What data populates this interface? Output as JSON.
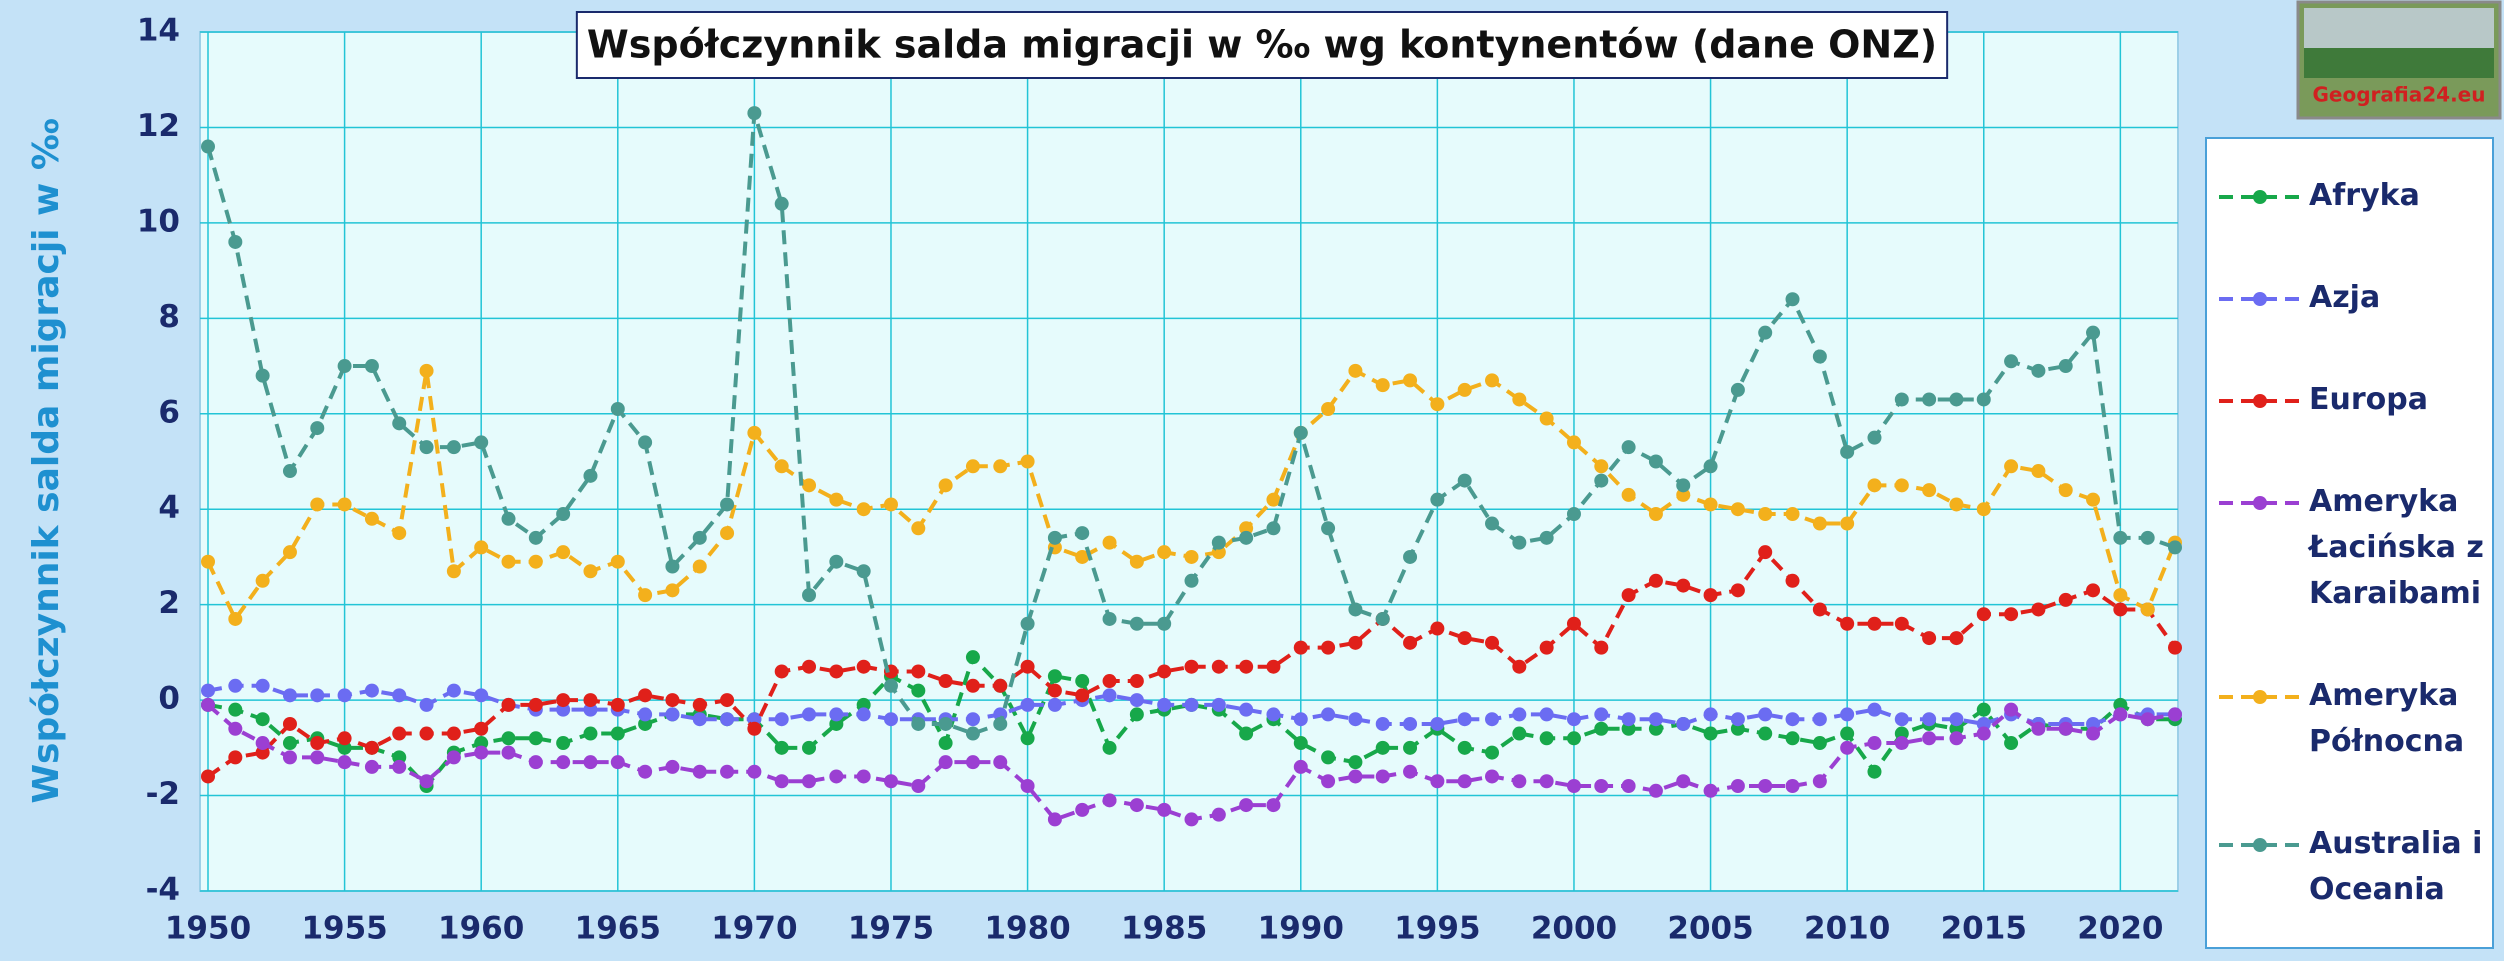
{
  "chart_data": {
    "type": "line",
    "title": "Współczynnik salda migracji w ‰ wg kontynentów (dane ONZ)",
    "y_label": "Współczynnik salda migracji w ‰",
    "logo_text": "Geografia24.eu",
    "x": [
      1950,
      1951,
      1952,
      1953,
      1954,
      1955,
      1956,
      1957,
      1958,
      1959,
      1960,
      1961,
      1962,
      1963,
      1964,
      1965,
      1966,
      1967,
      1968,
      1969,
      1970,
      1971,
      1972,
      1973,
      1974,
      1975,
      1976,
      1977,
      1978,
      1979,
      1980,
      1981,
      1982,
      1983,
      1984,
      1985,
      1986,
      1987,
      1988,
      1989,
      1990,
      1991,
      1992,
      1993,
      1994,
      1995,
      1996,
      1997,
      1998,
      1999,
      2000,
      2001,
      2002,
      2003,
      2004,
      2005,
      2006,
      2007,
      2008,
      2009,
      2010,
      2011,
      2012,
      2013,
      2014,
      2015,
      2016,
      2017,
      2018,
      2019,
      2020,
      2021,
      2022
    ],
    "xlim": [
      1950,
      2022
    ],
    "xticks": [
      1950,
      1955,
      1960,
      1965,
      1970,
      1975,
      1980,
      1985,
      1990,
      1995,
      2000,
      2005,
      2010,
      2015,
      2020
    ],
    "ylim": [
      -4,
      14
    ],
    "yticks": [
      -4,
      -2,
      0,
      2,
      4,
      6,
      8,
      10,
      12,
      14
    ],
    "grid": true,
    "series": [
      {
        "name": "Afryka",
        "color": "#17a84a",
        "values": [
          -0.1,
          -0.2,
          -0.4,
          -0.9,
          -0.8,
          -1.0,
          -1.0,
          -1.2,
          -1.8,
          -1.1,
          -0.9,
          -0.8,
          -0.8,
          -0.9,
          -0.7,
          -0.7,
          -0.5,
          -0.3,
          -0.3,
          -0.4,
          -0.4,
          -1.0,
          -1.0,
          -0.5,
          -0.1,
          0.5,
          0.2,
          -0.9,
          0.9,
          0.3,
          -0.8,
          0.5,
          0.4,
          -1.0,
          -0.3,
          -0.2,
          -0.1,
          -0.2,
          -0.7,
          -0.4,
          -0.9,
          -1.2,
          -1.3,
          -1.0,
          -1.0,
          -0.6,
          -1.0,
          -1.1,
          -0.7,
          -0.8,
          -0.8,
          -0.6,
          -0.6,
          -0.6,
          -0.5,
          -0.7,
          -0.6,
          -0.7,
          -0.8,
          -0.9,
          -0.7,
          -1.5,
          -0.7,
          -0.5,
          -0.6,
          -0.2,
          -0.9,
          -0.5,
          -0.6,
          -0.6,
          -0.1,
          -0.4,
          -0.4
        ]
      },
      {
        "name": "Azja",
        "color": "#6b6cf2",
        "values": [
          0.2,
          0.3,
          0.3,
          0.1,
          0.1,
          0.1,
          0.2,
          0.1,
          -0.1,
          0.2,
          0.1,
          -0.1,
          -0.2,
          -0.2,
          -0.2,
          -0.2,
          -0.3,
          -0.3,
          -0.4,
          -0.4,
          -0.4,
          -0.4,
          -0.3,
          -0.3,
          -0.3,
          -0.4,
          -0.4,
          -0.4,
          -0.4,
          -0.3,
          -0.1,
          -0.1,
          0.0,
          0.1,
          0.0,
          -0.1,
          -0.1,
          -0.1,
          -0.2,
          -0.3,
          -0.4,
          -0.3,
          -0.4,
          -0.5,
          -0.5,
          -0.5,
          -0.4,
          -0.4,
          -0.3,
          -0.3,
          -0.4,
          -0.3,
          -0.4,
          -0.4,
          -0.5,
          -0.3,
          -0.4,
          -0.3,
          -0.4,
          -0.4,
          -0.3,
          -0.2,
          -0.4,
          -0.4,
          -0.4,
          -0.5,
          -0.3,
          -0.5,
          -0.5,
          -0.5,
          -0.3,
          -0.3,
          -0.3
        ]
      },
      {
        "name": "Europa",
        "color": "#e0201a",
        "values": [
          -1.6,
          -1.2,
          -1.1,
          -0.5,
          -0.9,
          -0.8,
          -1.0,
          -0.7,
          -0.7,
          -0.7,
          -0.6,
          -0.1,
          -0.1,
          0.0,
          0.0,
          -0.1,
          0.1,
          0.0,
          -0.1,
          0.0,
          -0.6,
          0.6,
          0.7,
          0.6,
          0.7,
          0.6,
          0.6,
          0.4,
          0.3,
          0.3,
          0.7,
          0.2,
          0.1,
          0.4,
          0.4,
          0.6,
          0.7,
          0.7,
          0.7,
          0.7,
          1.1,
          1.1,
          1.2,
          1.7,
          1.2,
          1.5,
          1.3,
          1.2,
          0.7,
          1.1,
          1.6,
          1.1,
          2.2,
          2.5,
          2.4,
          2.2,
          2.3,
          3.1,
          2.5,
          1.9,
          1.6,
          1.6,
          1.6,
          1.3,
          1.3,
          1.8,
          1.8,
          1.9,
          2.1,
          2.3,
          1.9,
          1.9,
          1.1
        ]
      },
      {
        "name": "Ameryka Łacińska z Karaibami",
        "color": "#9b3fd2",
        "values": [
          -0.1,
          -0.6,
          -0.9,
          -1.2,
          -1.2,
          -1.3,
          -1.4,
          -1.4,
          -1.7,
          -1.2,
          -1.1,
          -1.1,
          -1.3,
          -1.3,
          -1.3,
          -1.3,
          -1.5,
          -1.4,
          -1.5,
          -1.5,
          -1.5,
          -1.7,
          -1.7,
          -1.6,
          -1.6,
          -1.7,
          -1.8,
          -1.3,
          -1.3,
          -1.3,
          -1.8,
          -2.5,
          -2.3,
          -2.1,
          -2.2,
          -2.3,
          -2.5,
          -2.4,
          -2.2,
          -2.2,
          -1.4,
          -1.7,
          -1.6,
          -1.6,
          -1.5,
          -1.7,
          -1.7,
          -1.6,
          -1.7,
          -1.7,
          -1.8,
          -1.8,
          -1.8,
          -1.9,
          -1.7,
          -1.9,
          -1.8,
          -1.8,
          -1.8,
          -1.7,
          -1.0,
          -0.9,
          -0.9,
          -0.8,
          -0.8,
          -0.7,
          -0.2,
          -0.6,
          -0.6,
          -0.7,
          -0.3,
          -0.4,
          -0.3
        ]
      },
      {
        "name": "Ameryka Północna",
        "color": "#f3b01c",
        "values": [
          2.9,
          1.7,
          2.5,
          3.1,
          4.1,
          4.1,
          3.8,
          3.5,
          6.9,
          2.7,
          3.2,
          2.9,
          2.9,
          3.1,
          2.7,
          2.9,
          2.2,
          2.3,
          2.8,
          3.5,
          5.6,
          4.9,
          4.5,
          4.2,
          4.0,
          4.1,
          3.6,
          4.5,
          4.9,
          4.9,
          5.0,
          3.2,
          3.0,
          3.3,
          2.9,
          3.1,
          3.0,
          3.1,
          3.6,
          4.2,
          5.6,
          6.1,
          6.9,
          6.6,
          6.7,
          6.2,
          6.5,
          6.7,
          6.3,
          5.9,
          5.4,
          4.9,
          4.3,
          3.9,
          4.3,
          4.1,
          4.0,
          3.9,
          3.9,
          3.7,
          3.7,
          4.5,
          4.5,
          4.4,
          4.1,
          4.0,
          4.9,
          4.8,
          4.4,
          4.2,
          2.2,
          1.9,
          3.3
        ]
      },
      {
        "name": "Australia i Oceania",
        "color": "#4a9a90",
        "values": [
          11.6,
          9.6,
          6.8,
          4.8,
          5.7,
          7.0,
          7.0,
          5.8,
          5.3,
          5.3,
          5.4,
          3.8,
          3.4,
          3.9,
          4.7,
          6.1,
          5.4,
          2.8,
          3.4,
          4.1,
          12.3,
          10.4,
          2.2,
          2.9,
          2.7,
          0.3,
          -0.5,
          -0.5,
          -0.7,
          -0.5,
          1.6,
          3.4,
          3.5,
          1.7,
          1.6,
          1.6,
          2.5,
          3.3,
          3.4,
          3.6,
          5.6,
          3.6,
          1.9,
          1.7,
          3.0,
          4.2,
          4.6,
          3.7,
          3.3,
          3.4,
          3.9,
          4.6,
          5.3,
          5.0,
          4.5,
          4.9,
          6.5,
          7.7,
          8.4,
          7.2,
          5.2,
          5.5,
          6.3,
          6.3,
          6.3,
          6.3,
          7.1,
          6.9,
          7.0,
          7.7,
          3.4,
          3.4,
          3.2
        ]
      }
    ]
  }
}
